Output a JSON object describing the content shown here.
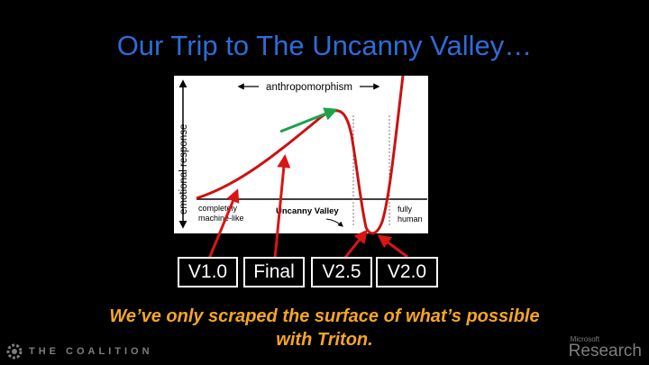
{
  "slide": {
    "title": "Our Trip to The Uncanny Valley…",
    "caption_line1": "We’ve only scraped the surface of what’s possible",
    "caption_line2": "with Triton."
  },
  "figure": {
    "y_axis_label": "emotional response",
    "top_arrow_label": "anthropomorphism",
    "left_bottom_label_line1": "completely",
    "left_bottom_label_line2": "machine-like",
    "valley_label": "Uncanny Valley",
    "right_bottom_label_line1": "fully",
    "right_bottom_label_line2": "human"
  },
  "version_labels": [
    "V1.0",
    "Final",
    "V2.5",
    "V2.0"
  ],
  "footer": {
    "left_text": "THE COALITION",
    "right_small": "Microsoft",
    "right_big": "Research"
  },
  "colors": {
    "title": "#2f6bd8",
    "caption": "#f5a623",
    "curve": "#cc1111",
    "arrows": "#d91515",
    "green_arrow": "#1aa34a"
  }
}
